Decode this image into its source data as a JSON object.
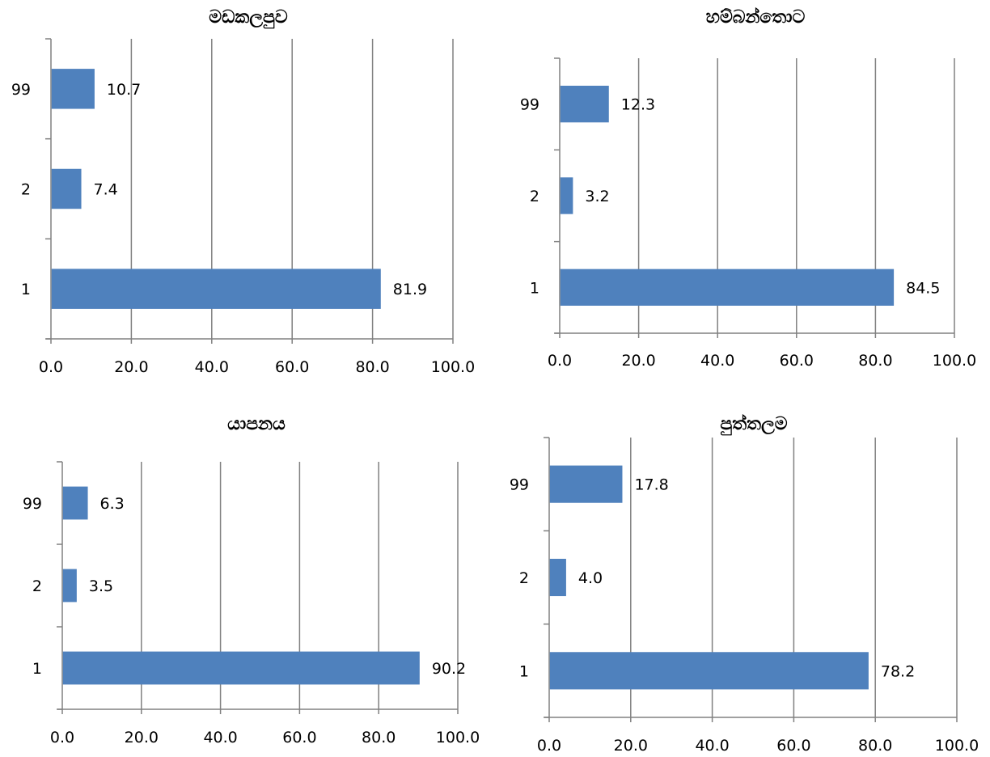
{
  "chart_data": [
    {
      "type": "bar",
      "orientation": "horizontal",
      "title": "මඩකලපුව",
      "categories": [
        "1",
        "2",
        "99"
      ],
      "values": [
        81.9,
        7.4,
        10.7
      ],
      "data_labels": [
        "81.9",
        "7.4",
        "10.7"
      ],
      "xlim": [
        0,
        100
      ],
      "x_ticks": [
        "0.0",
        "20.0",
        "40.0",
        "60.0",
        "80.0",
        "100.0"
      ],
      "grid": "vertical",
      "bar_color": "#4f81bd",
      "grid_color": "#808080"
    },
    {
      "type": "bar",
      "orientation": "horizontal",
      "title": "හම්බන්තොට",
      "categories": [
        "1",
        "2",
        "99"
      ],
      "values": [
        84.5,
        3.2,
        12.3
      ],
      "data_labels": [
        "84.5",
        "3.2",
        "12.3"
      ],
      "xlim": [
        0,
        100
      ],
      "x_ticks": [
        "0.0",
        "20.0",
        "40.0",
        "60.0",
        "80.0",
        "100.0"
      ],
      "grid": "vertical",
      "bar_color": "#4f81bd",
      "grid_color": "#808080"
    },
    {
      "type": "bar",
      "orientation": "horizontal",
      "title": "යාපනය",
      "categories": [
        "1",
        "2",
        "99"
      ],
      "values": [
        90.2,
        3.5,
        6.3
      ],
      "data_labels": [
        "90.2",
        "3.5",
        "6.3"
      ],
      "xlim": [
        0,
        100
      ],
      "x_ticks": [
        "0.0",
        "20.0",
        "40.0",
        "60.0",
        "80.0",
        "100.0"
      ],
      "grid": "vertical",
      "bar_color": "#4f81bd",
      "grid_color": "#808080"
    },
    {
      "type": "bar",
      "orientation": "horizontal",
      "title": "පුත්තලම",
      "categories": [
        "1",
        "2",
        "99"
      ],
      "values": [
        78.2,
        4.0,
        17.8
      ],
      "data_labels": [
        "78.2",
        "4.0",
        "17.8"
      ],
      "xlim": [
        0,
        100
      ],
      "x_ticks": [
        "0.0",
        "20.0",
        "40.0",
        "60.0",
        "80.0",
        "100.0"
      ],
      "grid": "vertical",
      "bar_color": "#4f81bd",
      "grid_color": "#808080"
    }
  ]
}
